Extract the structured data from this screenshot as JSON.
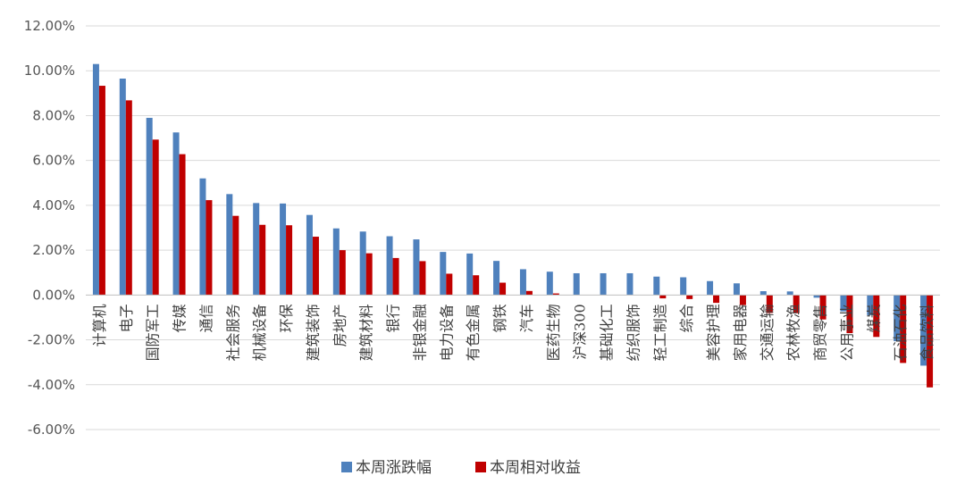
{
  "chart_data": {
    "type": "bar",
    "ylim": [
      -6,
      12
    ],
    "y_ticks": [
      "12.00%",
      "10.00%",
      "8.00%",
      "6.00%",
      "4.00%",
      "2.00%",
      "0.00%",
      "-2.00%",
      "-4.00%",
      "-6.00%"
    ],
    "y_tick_values": [
      12,
      10,
      8,
      6,
      4,
      2,
      0,
      -2,
      -4,
      -6
    ],
    "grid": true,
    "legend_position": "bottom",
    "categories": [
      "计算机",
      "电子",
      "国防军工",
      "传媒",
      "通信",
      "社会服务",
      "机械设备",
      "环保",
      "建筑装饰",
      "房地产",
      "建筑材料",
      "银行",
      "非银金融",
      "电力设备",
      "有色金属",
      "钢铁",
      "汽车",
      "医药生物",
      "沪深300",
      "基础化工",
      "纺织服饰",
      "轻工制造",
      "综合",
      "美容护理",
      "家用电器",
      "交通运输",
      "农林牧渔",
      "商贸零售",
      "公用事业",
      "煤炭",
      "石油石化",
      "食品饮料"
    ],
    "series": [
      {
        "name": "本周涨跌幅",
        "color": "#4f81bd",
        "values": [
          10.3,
          9.65,
          7.9,
          7.25,
          5.2,
          4.5,
          4.1,
          4.08,
          3.57,
          2.97,
          2.83,
          2.62,
          2.48,
          1.92,
          1.85,
          1.52,
          1.15,
          1.04,
          0.97,
          0.97,
          0.97,
          0.82,
          0.79,
          0.62,
          0.52,
          0.17,
          0.16,
          -0.12,
          -0.73,
          -0.9,
          -2.06,
          -3.15
        ]
      },
      {
        "name": "本周相对收益",
        "color": "#c00000",
        "values": [
          9.33,
          8.68,
          6.93,
          6.28,
          4.23,
          3.53,
          3.13,
          3.11,
          2.6,
          2.0,
          1.86,
          1.65,
          1.51,
          0.95,
          0.88,
          0.55,
          0.18,
          0.07,
          0.0,
          0.0,
          0.0,
          -0.15,
          -0.18,
          -0.35,
          -0.45,
          -0.8,
          -0.81,
          -1.09,
          -1.7,
          -1.87,
          -3.03,
          -4.12
        ]
      }
    ]
  }
}
